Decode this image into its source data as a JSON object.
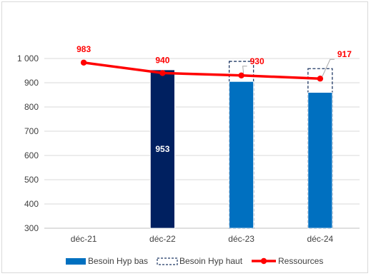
{
  "chart_data": {
    "type": "bar",
    "categories": [
      "déc-21",
      "déc-22",
      "déc-23",
      "déc-24"
    ],
    "ylim": [
      300,
      1000
    ],
    "yticks": [
      "300",
      "400",
      "500",
      "600",
      "700",
      "800",
      "900",
      "1 000"
    ],
    "ytick_values": [
      300,
      400,
      500,
      600,
      700,
      800,
      900,
      1000
    ],
    "grid": true,
    "legend_position": "bottom",
    "series": [
      {
        "name": "Besoin Hyp bas",
        "kind": "bar",
        "values": [
          null,
          953,
          905,
          860
        ],
        "color": "#0070c0",
        "highlight_color": "#002060"
      },
      {
        "name": "Besoin Hyp haut",
        "kind": "bar-dashed",
        "values": [
          null,
          null,
          988,
          958
        ],
        "color": "#1f3864"
      },
      {
        "name": "Ressources",
        "kind": "line",
        "values": [
          983,
          940,
          930,
          917
        ],
        "color": "#ff0000"
      }
    ],
    "bar_labels": [
      {
        "category": "déc-22",
        "text": "953"
      }
    ],
    "line_labels": [
      "983",
      "940",
      "930",
      "917"
    ]
  }
}
